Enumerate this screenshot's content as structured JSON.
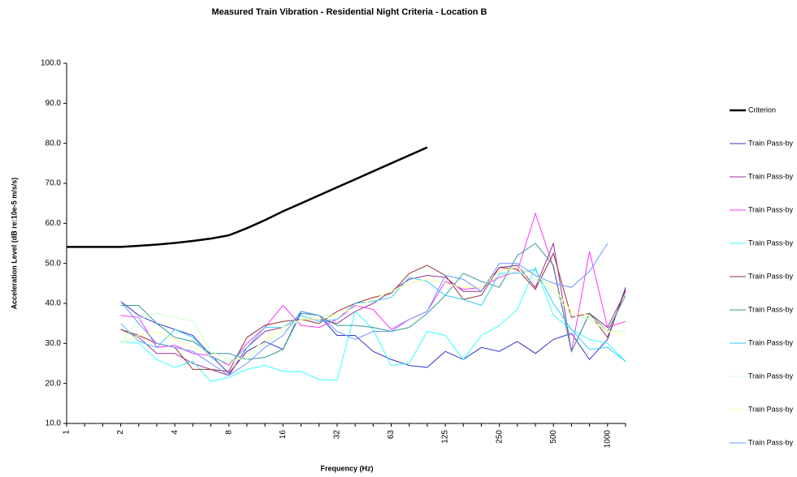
{
  "chart_data": {
    "type": "line",
    "title": "Measured Train Vibration - Residential Night Criteria - Location B",
    "x_label": "Frequency (Hz)",
    "y_label": "Acceleration Level (dB re:10e-5 m/s/s)",
    "categories": [
      "1",
      null,
      null,
      "2",
      null,
      null,
      "4",
      null,
      null,
      "8",
      null,
      null,
      "16",
      null,
      null,
      "32",
      null,
      null,
      "63",
      null,
      null,
      "125",
      null,
      null,
      "250",
      null,
      null,
      "500",
      null,
      null,
      "1000",
      null
    ],
    "ylim": [
      10,
      100
    ],
    "yticks": [
      {
        "value": 10,
        "label": "10.0"
      },
      {
        "value": 20,
        "label": "20.0"
      },
      {
        "value": 30,
        "label": "30.0"
      },
      {
        "value": 40,
        "label": "40.0"
      },
      {
        "value": 50,
        "label": "50.0"
      },
      {
        "value": 60,
        "label": "60.0"
      },
      {
        "value": 70,
        "label": "70.0"
      },
      {
        "value": 80,
        "label": "80.0"
      },
      {
        "value": 90,
        "label": "90.0"
      },
      {
        "value": 100,
        "label": "100.0"
      }
    ],
    "grid": false,
    "legend": "right",
    "series": [
      {
        "name": "Criterion",
        "color": "#000000",
        "values": [
          54.1,
          54.1,
          54.1,
          54.1,
          54.4,
          54.7,
          55.1,
          55.6,
          56.2,
          57,
          58.8,
          60.8,
          63,
          65,
          67,
          69,
          71,
          73,
          75,
          77,
          79,
          null,
          null,
          null,
          null,
          null,
          null,
          null,
          null,
          null,
          null,
          null
        ]
      },
      {
        "name": "Train Pass-by",
        "color": "#3333cc",
        "values": [
          null,
          null,
          null,
          40.5,
          37,
          35,
          33.5,
          32,
          27,
          22.5,
          28,
          30.5,
          28.5,
          38,
          37,
          32,
          32,
          28,
          26,
          24.5,
          24,
          28,
          26,
          29,
          28,
          30.5,
          27.5,
          31,
          32.5,
          26,
          31,
          44
        ]
      },
      {
        "name": "Train Pass-by",
        "color": "#993399",
        "values": [
          null,
          null,
          null,
          33.5,
          31.5,
          27.5,
          27.5,
          25,
          23.5,
          22,
          29,
          33,
          34,
          36,
          36,
          35,
          38,
          40,
          43,
          46,
          47,
          46.5,
          43,
          43,
          49,
          49.5,
          44,
          55,
          28,
          37.5,
          34,
          43
        ]
      },
      {
        "name": "Train Pass-by",
        "color": "#ff33ff",
        "values": [
          null,
          null,
          null,
          37,
          36.5,
          29,
          29.5,
          27.5,
          27,
          24.5,
          30,
          34,
          39.5,
          34.5,
          34,
          36,
          39.5,
          38.5,
          33.5,
          36,
          38,
          45.5,
          43.5,
          44,
          46.5,
          48,
          62.5,
          49,
          28,
          53,
          34,
          35.5
        ]
      },
      {
        "name": "Train Pass-by",
        "color": "#33ffff",
        "values": [
          null,
          null,
          null,
          30.5,
          30,
          26,
          24,
          25.5,
          20.5,
          21.5,
          23.5,
          24.5,
          23,
          23,
          21,
          20.8,
          38,
          33.5,
          24.5,
          25,
          33,
          32,
          26,
          32,
          34.5,
          38.5,
          49,
          37,
          33.5,
          31,
          30,
          25.5
        ]
      },
      {
        "name": "Train Pass-by",
        "color": "#993333",
        "values": [
          null,
          null,
          null,
          33.5,
          32,
          30,
          29,
          23.5,
          23.5,
          23,
          31.5,
          34.5,
          35.5,
          36,
          35,
          38,
          40,
          41.5,
          42.5,
          47.5,
          49.5,
          47,
          41,
          42,
          49,
          48.5,
          43.5,
          52.5,
          36.5,
          37.5,
          31.5,
          43.5
        ]
      },
      {
        "name": "Train Pass-by",
        "color": "#339999",
        "values": [
          null,
          null,
          null,
          39.5,
          39.5,
          35,
          31.5,
          30.5,
          27.5,
          27.5,
          26,
          26.5,
          28.5,
          37.5,
          37,
          34.5,
          34.5,
          34,
          33,
          34,
          37.5,
          42,
          47.5,
          45.5,
          44,
          52,
          55,
          49.5,
          28,
          37.5,
          33,
          42
        ]
      },
      {
        "name": "Train Pass-by",
        "color": "#33ccff",
        "values": [
          null,
          null,
          null,
          35,
          30.5,
          29,
          33.5,
          31.5,
          26.5,
          25,
          29,
          34,
          34,
          37,
          35.5,
          36,
          40,
          40.5,
          41.5,
          46.5,
          45.5,
          42,
          41,
          39.5,
          47.5,
          47.5,
          48.5,
          40,
          33.5,
          28.5,
          29,
          25.5
        ]
      },
      {
        "name": "Train Pass-by",
        "color": "#ccffcc",
        "values": [
          null,
          null,
          null,
          30,
          36,
          37.5,
          36.5,
          35.5,
          28,
          26,
          26,
          30,
          33,
          36,
          37,
          37,
          39,
          41,
          43,
          45,
          46,
          45,
          44,
          44,
          47,
          48,
          46,
          43,
          37,
          36,
          33,
          33
        ]
      },
      {
        "name": "Train Pass-by",
        "color": "#ffff99",
        "values": [
          null,
          null,
          null,
          30,
          32,
          33,
          31,
          29,
          27,
          25,
          27,
          31,
          34,
          36,
          36,
          37,
          39,
          41,
          43,
          45,
          46,
          45,
          44,
          44,
          48,
          49,
          47,
          44,
          38,
          37,
          33,
          32
        ]
      },
      {
        "name": "Train Pass-by",
        "color": "#6699ff",
        "values": [
          null,
          null,
          null,
          40.5,
          35,
          30,
          29,
          28,
          25,
          22,
          25,
          29,
          32,
          38,
          37,
          33,
          31,
          33,
          33,
          36,
          38,
          47,
          46,
          43,
          50,
          50,
          47,
          45,
          44,
          48,
          55,
          null
        ]
      }
    ]
  }
}
